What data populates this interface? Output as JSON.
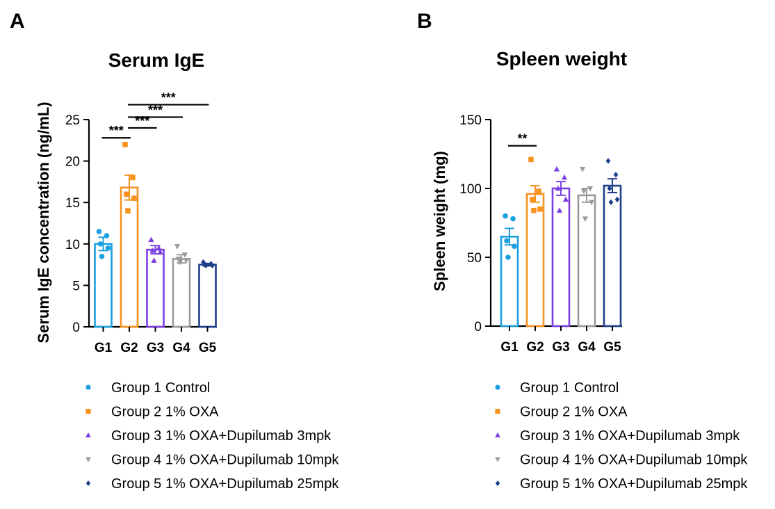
{
  "colors": {
    "G1": "#1aa0e0",
    "G2": "#f7931e",
    "G3": "#7b3fe4",
    "G4": "#9b9b9b",
    "G5": "#1f3e8a",
    "axis": "#000000"
  },
  "legend": [
    {
      "label": "Group 1 Control",
      "marker": "circle",
      "color_key": "G1"
    },
    {
      "label": "Group 2 1% OXA",
      "marker": "square",
      "color_key": "G2"
    },
    {
      "label": "Group 3 1% OXA+Dupilumab 3mpk",
      "marker": "triangle-up",
      "color_key": "G3"
    },
    {
      "label": "Group 4 1% OXA+Dupilumab 10mpk",
      "marker": "triangle-down",
      "color_key": "G4"
    },
    {
      "label": "Group 5 1% OXA+Dupilumab 25mpk",
      "marker": "diamond",
      "color_key": "G5"
    }
  ],
  "chart_data": [
    {
      "panel_label": "A",
      "type": "bar",
      "title": "Serum IgE",
      "xlabel": "",
      "ylabel": "Serum IgE concentration (ng/mL)",
      "categories": [
        "G1",
        "G2",
        "G3",
        "G4",
        "G5"
      ],
      "ylim": [
        0,
        25
      ],
      "yticks": [
        0,
        5,
        10,
        15,
        20,
        25
      ],
      "means": [
        10.0,
        16.8,
        9.3,
        8.2,
        7.5
      ],
      "sem": [
        0.8,
        1.5,
        0.5,
        0.5,
        0.15
      ],
      "points": [
        [
          11.5,
          11.0,
          10.0,
          9.5,
          8.5
        ],
        [
          22.0,
          18.0,
          16.0,
          15.5,
          14.0
        ],
        [
          10.5,
          9.5,
          9.2,
          9.0,
          8.0
        ],
        [
          9.7,
          8.7,
          8.2,
          8.0,
          7.8
        ],
        [
          7.8,
          7.6,
          7.5,
          7.4,
          7.4
        ]
      ],
      "significance": [
        {
          "from": 0,
          "to": 1,
          "label": "***",
          "y": 22.8
        },
        {
          "from": 1,
          "to": 2,
          "label": "***",
          "y": 24.0
        },
        {
          "from": 1,
          "to": 3,
          "label": "***",
          "y": 25.3
        },
        {
          "from": 1,
          "to": 4,
          "label": "***",
          "y": 26.8
        }
      ],
      "grid": false,
      "legend_position": "bottom"
    },
    {
      "panel_label": "B",
      "type": "bar",
      "title": "Spleen weight",
      "xlabel": "",
      "ylabel": "Spleen weight (mg)",
      "categories": [
        "G1",
        "G2",
        "G3",
        "G4",
        "G5"
      ],
      "ylim": [
        0,
        150
      ],
      "yticks": [
        0,
        50,
        100,
        150
      ],
      "means": [
        65,
        96,
        100,
        95,
        102
      ],
      "sem": [
        6,
        6,
        5,
        5,
        5
      ],
      "points": [
        [
          80,
          78,
          62,
          58,
          50
        ],
        [
          121,
          98,
          92,
          85,
          84
        ],
        [
          114,
          108,
          100,
          92,
          84
        ],
        [
          114,
          100,
          98,
          90,
          78
        ],
        [
          120,
          110,
          100,
          92,
          90
        ]
      ],
      "significance": [
        {
          "from": 0,
          "to": 1,
          "label": "**",
          "y": 131
        }
      ],
      "grid": false,
      "legend_position": "bottom"
    }
  ]
}
